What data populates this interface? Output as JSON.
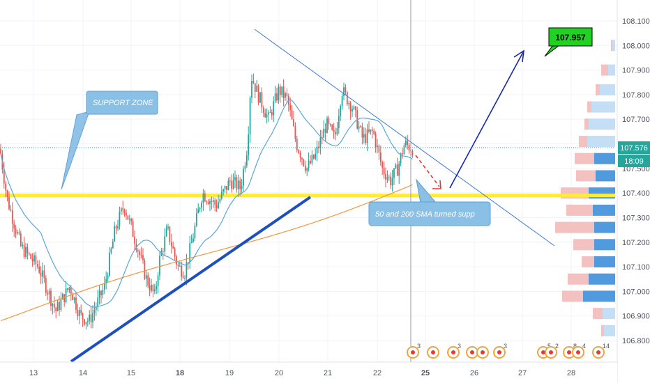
{
  "chart_data": {
    "type": "candlestick",
    "price_axis": {
      "ticks": [
        "108.100",
        "108.000",
        "107.900",
        "107.800",
        "107.700",
        "107.600",
        "107.500",
        "107.400",
        "107.300",
        "107.200",
        "107.100",
        "107.000",
        "106.900",
        "106.800"
      ],
      "ylim": [
        106.76,
        108.15
      ]
    },
    "date_axis": {
      "ticks": [
        "13",
        "14",
        "15",
        "18",
        "19",
        "20",
        "21",
        "22",
        "25",
        "26",
        "27",
        "28"
      ],
      "bold_ticks": [
        "18",
        "25"
      ]
    },
    "current_price": {
      "label": "107.576",
      "value": 107.576,
      "countdown": "18:09",
      "color": "#26a69a"
    },
    "support_level": {
      "value": 107.39,
      "color": "#ffeb3b"
    },
    "series": [
      {
        "name": "SMA 50",
        "color": "#5aa7d8"
      },
      {
        "name": "SMA 200",
        "color": "#f4953a"
      }
    ],
    "annotations": {
      "support_zone": "SUPPORT ZONE",
      "sma_note": "50 and 200 SMA turned supp",
      "target_price": "107.957"
    },
    "event_markers": [
      {
        "label": "3"
      },
      {
        "label": ""
      },
      {
        "label": "3"
      },
      {
        "label": ""
      },
      {
        "label": ""
      },
      {
        "label": "3"
      },
      {
        "label": "5"
      },
      {
        "label": "2"
      },
      {
        "label": "8"
      },
      {
        "label": "4"
      },
      {
        "label": "14"
      }
    ],
    "colors": {
      "up": "#26a69a",
      "down": "#ef5350",
      "trendline": "#1e4fbf",
      "resistance": "#3d7bd9",
      "projection": "#1526b8"
    }
  }
}
